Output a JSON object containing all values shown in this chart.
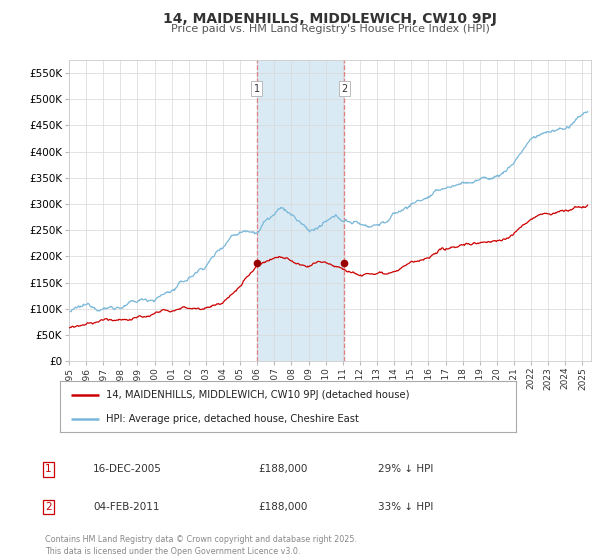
{
  "title": "14, MAIDENHILLS, MIDDLEWICH, CW10 9PJ",
  "subtitle": "Price paid vs. HM Land Registry's House Price Index (HPI)",
  "legend_entry1": "14, MAIDENHILLS, MIDDLEWICH, CW10 9PJ (detached house)",
  "legend_entry2": "HPI: Average price, detached house, Cheshire East",
  "marker1_label": "1",
  "marker2_label": "2",
  "marker1_date": "16-DEC-2005",
  "marker1_price": "£188,000",
  "marker1_pct": "29% ↓ HPI",
  "marker2_date": "04-FEB-2011",
  "marker2_price": "£188,000",
  "marker2_pct": "33% ↓ HPI",
  "footer": "Contains HM Land Registry data © Crown copyright and database right 2025.\nThis data is licensed under the Open Government Licence v3.0.",
  "hpi_color": "#7ab8d9",
  "price_color": "#cc0000",
  "marker_color": "#990000",
  "shade_color": "#daeaf5",
  "grid_color": "#d8d8d8",
  "bg_color": "#ffffff",
  "ylim": [
    0,
    575000
  ],
  "xlim_start": 1995.0,
  "xlim_end": 2025.5,
  "marker1_x": 2005.96,
  "marker2_x": 2011.09,
  "marker1_y": 188000,
  "marker2_y": 188000,
  "yticks": [
    0,
    50000,
    100000,
    150000,
    200000,
    250000,
    300000,
    350000,
    400000,
    450000,
    500000,
    550000
  ],
  "xticks": [
    1995,
    1996,
    1997,
    1998,
    1999,
    2000,
    2001,
    2002,
    2003,
    2004,
    2005,
    2006,
    2007,
    2008,
    2009,
    2010,
    2011,
    2012,
    2013,
    2014,
    2015,
    2016,
    2017,
    2018,
    2019,
    2020,
    2021,
    2022,
    2023,
    2024,
    2025
  ],
  "hpi_anchors_x": [
    1995.0,
    1996.0,
    1997.0,
    1998.0,
    1999.0,
    2000.0,
    2001.0,
    2002.0,
    2003.0,
    2004.0,
    2004.5,
    2005.0,
    2005.5,
    2006.0,
    2006.5,
    2007.0,
    2007.5,
    2008.0,
    2008.5,
    2009.0,
    2009.5,
    2010.0,
    2010.5,
    2011.0,
    2011.5,
    2012.0,
    2012.5,
    2013.0,
    2013.5,
    2014.0,
    2014.5,
    2015.0,
    2015.5,
    2016.0,
    2016.5,
    2017.0,
    2017.5,
    2018.0,
    2018.5,
    2019.0,
    2019.5,
    2020.0,
    2020.5,
    2021.0,
    2021.5,
    2022.0,
    2022.5,
    2023.0,
    2023.5,
    2024.0,
    2024.5,
    2025.3
  ],
  "hpi_anchors_y": [
    95000,
    98000,
    102000,
    108000,
    113000,
    122000,
    138000,
    158000,
    185000,
    225000,
    248000,
    258000,
    265000,
    268000,
    290000,
    300000,
    308000,
    295000,
    278000,
    263000,
    268000,
    275000,
    278000,
    275000,
    272000,
    268000,
    267000,
    272000,
    278000,
    290000,
    298000,
    310000,
    318000,
    325000,
    330000,
    338000,
    342000,
    348000,
    352000,
    355000,
    358000,
    362000,
    372000,
    390000,
    415000,
    435000,
    442000,
    448000,
    452000,
    453000,
    460000,
    480000
  ],
  "price_anchors_x": [
    1995.0,
    1996.0,
    1997.0,
    1998.0,
    1999.0,
    2000.0,
    2001.0,
    2002.0,
    2003.0,
    2004.0,
    2005.0,
    2005.96,
    2006.5,
    2007.0,
    2007.5,
    2008.0,
    2008.5,
    2009.0,
    2009.5,
    2010.0,
    2010.5,
    2011.09,
    2011.5,
    2012.0,
    2012.5,
    2013.0,
    2013.5,
    2014.0,
    2014.5,
    2015.0,
    2015.5,
    2016.0,
    2016.5,
    2017.0,
    2017.5,
    2018.0,
    2018.5,
    2019.0,
    2019.5,
    2020.0,
    2020.5,
    2021.0,
    2021.5,
    2022.0,
    2022.5,
    2023.0,
    2023.5,
    2024.0,
    2024.5,
    2025.3
  ],
  "price_anchors_y": [
    65000,
    68000,
    72000,
    76000,
    80000,
    86000,
    92000,
    98000,
    103000,
    112000,
    140000,
    188000,
    198000,
    205000,
    208000,
    200000,
    190000,
    183000,
    188000,
    192000,
    190000,
    188000,
    185000,
    183000,
    185000,
    188000,
    192000,
    198000,
    205000,
    210000,
    212000,
    215000,
    218000,
    222000,
    228000,
    233000,
    235000,
    238000,
    240000,
    242000,
    248000,
    260000,
    272000,
    285000,
    292000,
    295000,
    298000,
    300000,
    305000,
    312000
  ]
}
